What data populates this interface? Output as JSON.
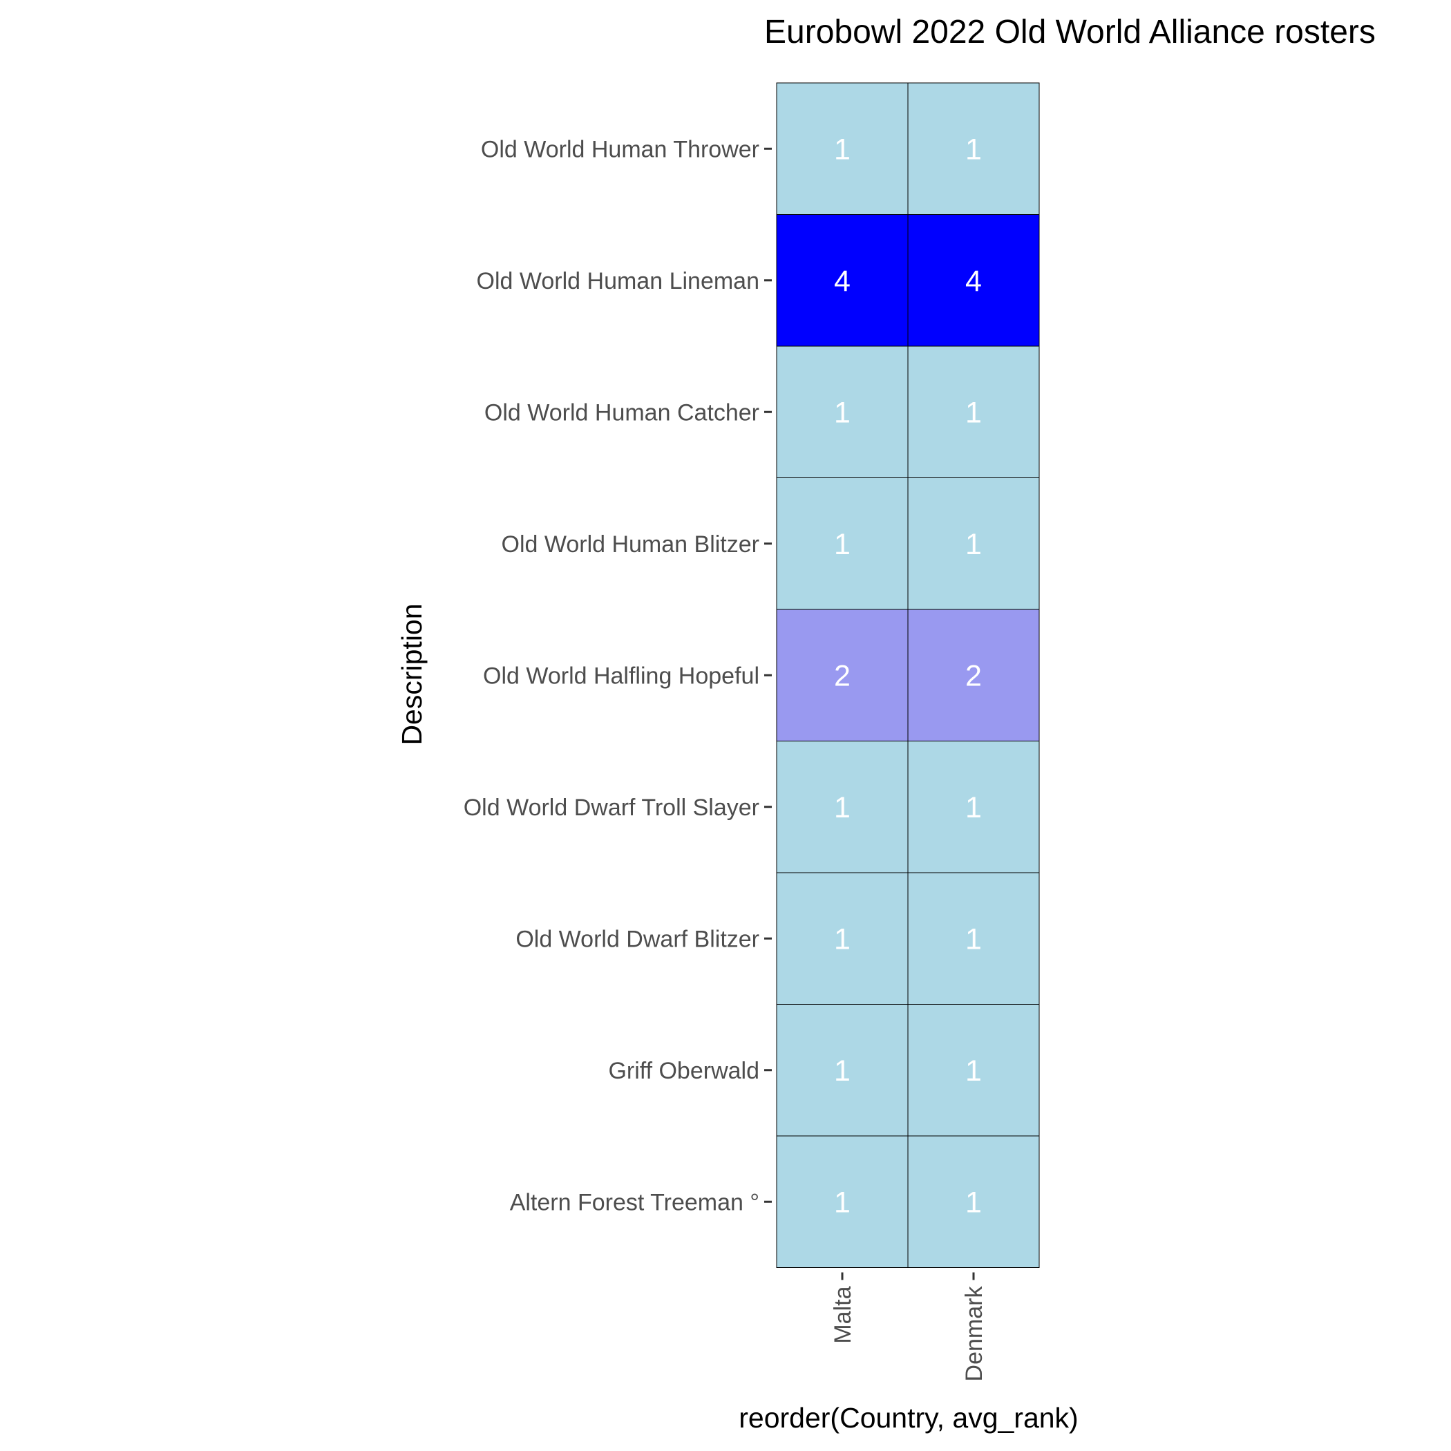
{
  "chart_data": {
    "type": "heatmap",
    "title": "Eurobowl 2022 Old World Alliance rosters",
    "xlabel": "reorder(Country, avg_rank)",
    "ylabel": "Description",
    "x_categories": [
      "Malta",
      "Denmark"
    ],
    "y_categories": [
      "Old World Human Thrower",
      "Old World Human Lineman",
      "Old World Human Catcher",
      "Old World Human Blitzer",
      "Old World Halfling Hopeful",
      "Old World Dwarf Troll Slayer",
      "Old World Dwarf Blitzer",
      "Griff Oberwald",
      "Altern Forest Treeman °"
    ],
    "values": [
      [
        1,
        1
      ],
      [
        4,
        4
      ],
      [
        1,
        1
      ],
      [
        1,
        1
      ],
      [
        2,
        2
      ],
      [
        1,
        1
      ],
      [
        1,
        1
      ],
      [
        1,
        1
      ],
      [
        1,
        1
      ]
    ],
    "color_scale": {
      "low": "#add8e6",
      "mid": "#9999f0",
      "high": "#0000ff",
      "domain": [
        1,
        4
      ]
    },
    "grid": false,
    "legend": "none"
  }
}
